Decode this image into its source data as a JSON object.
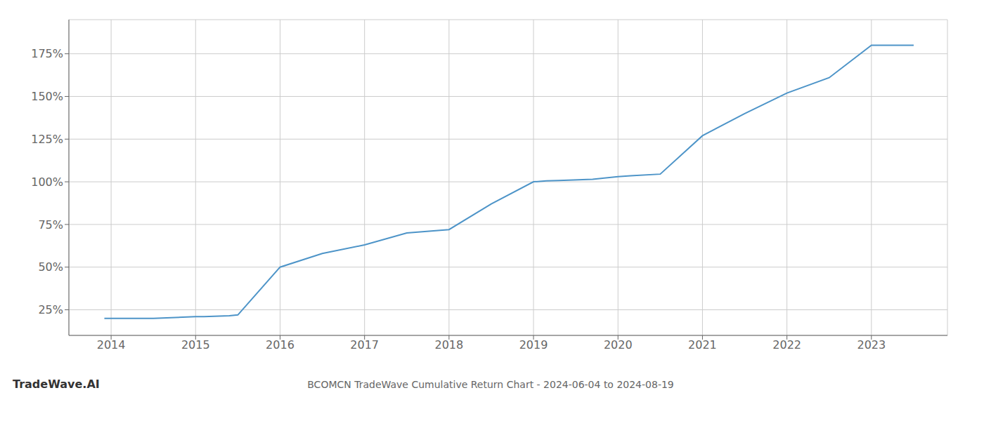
{
  "chart_data": {
    "type": "line",
    "title": "BCOMCN TradeWave Cumulative Return Chart - 2024-06-04 to 2024-08-19",
    "annotations": [
      "TradeWave.AI"
    ],
    "x": [
      2013.92,
      2014.0,
      2014.5,
      2015.0,
      2015.1,
      2015.4,
      2015.5,
      2016.0,
      2016.5,
      2017.0,
      2017.5,
      2018.0,
      2018.5,
      2019.0,
      2019.15,
      2019.3,
      2019.7,
      2020.0,
      2020.15,
      2020.5,
      2021.0,
      2021.5,
      2022.0,
      2022.5,
      2023.0,
      2023.5
    ],
    "values": [
      20,
      20,
      20,
      21,
      21.0,
      21.5,
      22,
      50,
      58,
      63,
      70,
      72,
      87,
      100,
      100.5,
      100.8,
      101.5,
      103,
      103.5,
      104.5,
      127,
      140,
      152,
      161,
      180,
      180
    ],
    "color": "#4d94c8",
    "xlim": [
      2013.5,
      2023.9
    ],
    "ylim": [
      10,
      195
    ],
    "xticks": [
      2014,
      2015,
      2016,
      2017,
      2018,
      2019,
      2020,
      2021,
      2022,
      2023
    ],
    "yticks": [
      {
        "value": 25,
        "label": "25%"
      },
      {
        "value": 50,
        "label": "50%"
      },
      {
        "value": 75,
        "label": "75%"
      },
      {
        "value": 100,
        "label": "100%"
      },
      {
        "value": 125,
        "label": "125%"
      },
      {
        "value": 150,
        "label": "150%"
      },
      {
        "value": 175,
        "label": "175%"
      }
    ],
    "grid": true
  }
}
